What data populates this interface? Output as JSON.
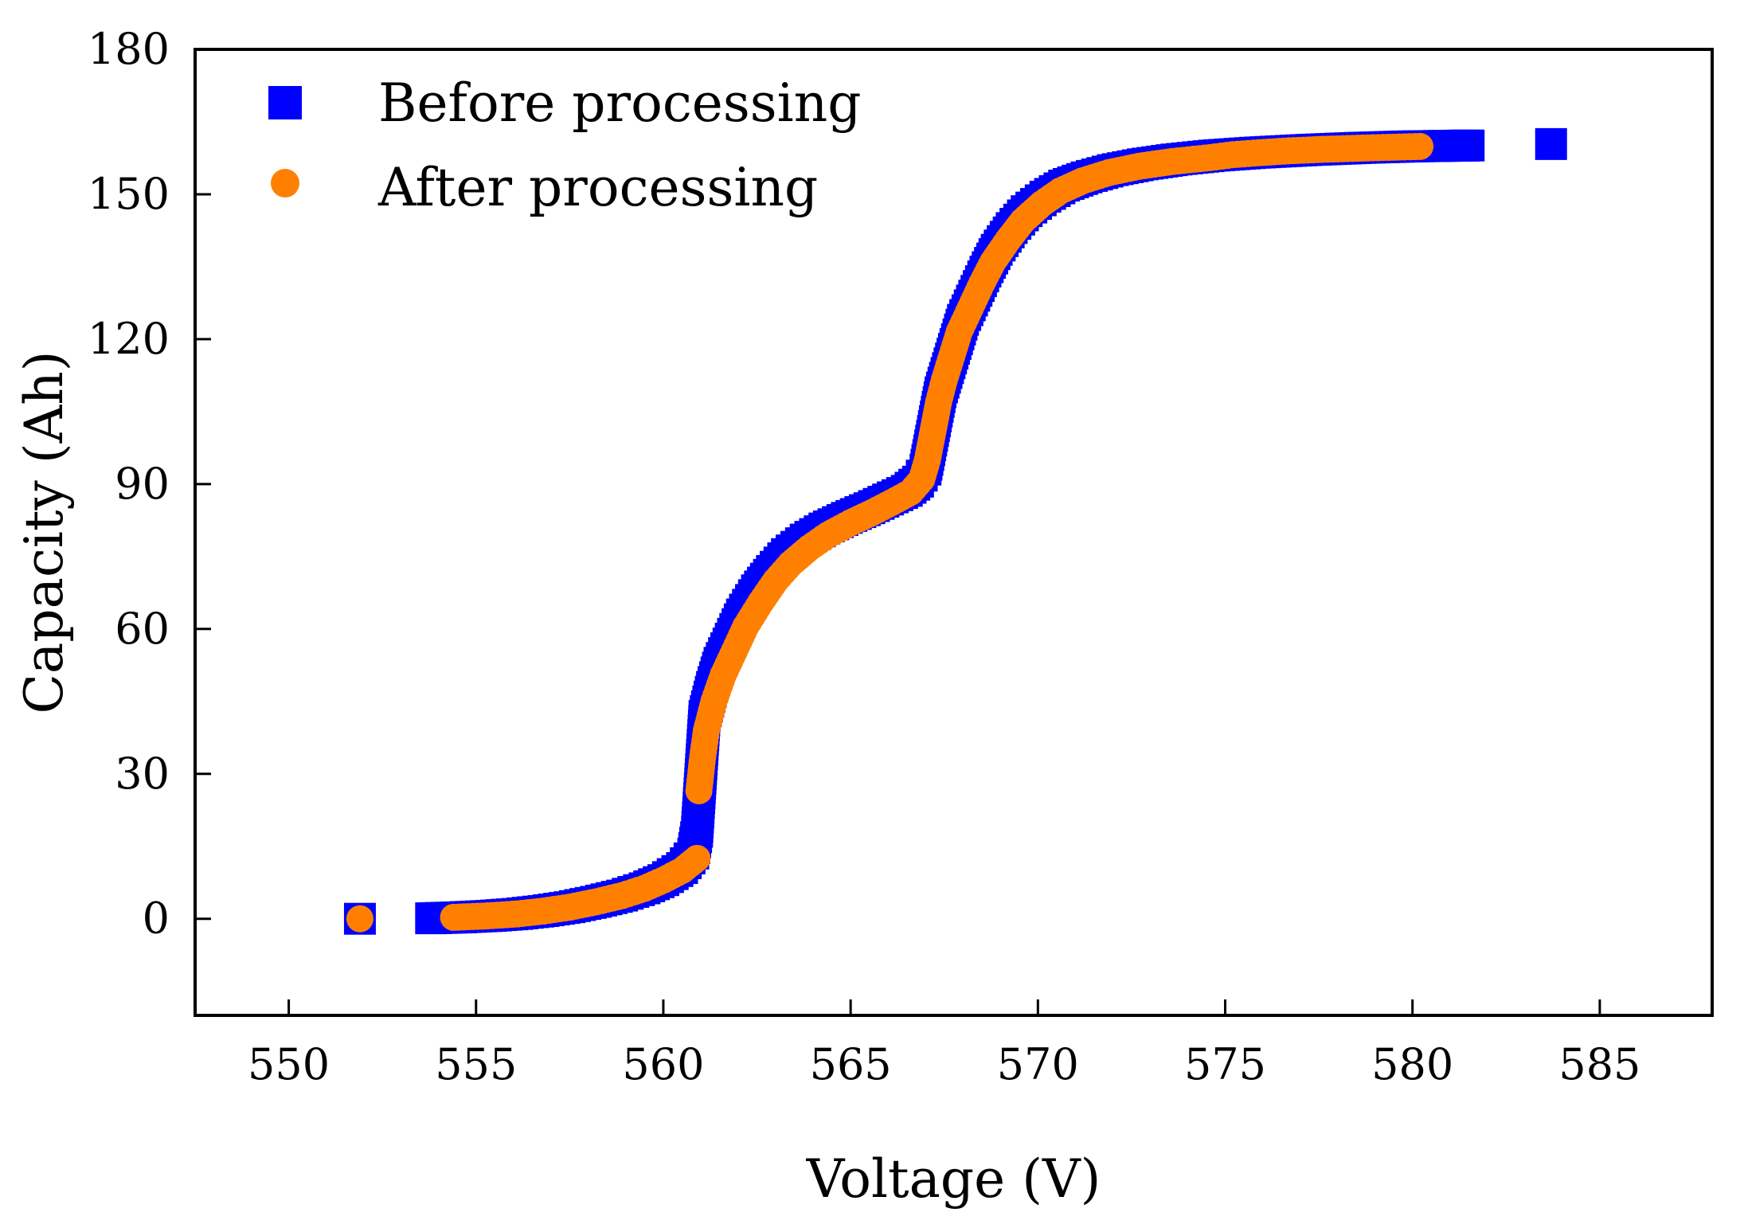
{
  "chart_data": {
    "type": "scatter",
    "xlabel": "Voltage (V)",
    "ylabel": "Capacity (Ah)",
    "xlim": [
      547.5,
      588.0
    ],
    "ylim": [
      -20,
      180
    ],
    "xticks": [
      550,
      555,
      560,
      565,
      570,
      575,
      580,
      585
    ],
    "yticks": [
      0,
      30,
      60,
      90,
      120,
      150,
      180
    ],
    "grid": false,
    "legend_position": "top-left",
    "series": [
      {
        "name": "Before processing",
        "marker": "square",
        "color": "#0000ff",
        "points": [
          [
            551.9,
            0
          ],
          [
            553.8,
            0.1
          ],
          [
            554.6,
            0.3
          ],
          [
            555.4,
            0.6
          ],
          [
            556.1,
            1.0
          ],
          [
            556.8,
            1.6
          ],
          [
            557.5,
            2.4
          ],
          [
            558.2,
            3.5
          ],
          [
            558.9,
            4.8
          ],
          [
            559.5,
            6.3
          ],
          [
            560.0,
            8.0
          ],
          [
            560.5,
            10.5
          ],
          [
            560.8,
            13.5
          ],
          [
            560.9,
            18
          ],
          [
            560.95,
            24
          ],
          [
            561.0,
            30
          ],
          [
            561.05,
            36
          ],
          [
            561.1,
            42
          ],
          [
            561.3,
            48
          ],
          [
            561.5,
            53
          ],
          [
            561.8,
            58
          ],
          [
            562.1,
            63
          ],
          [
            562.5,
            68
          ],
          [
            562.9,
            72
          ],
          [
            563.3,
            75.5
          ],
          [
            563.8,
            78.5
          ],
          [
            564.3,
            80.8
          ],
          [
            564.9,
            83
          ],
          [
            565.5,
            85
          ],
          [
            566.0,
            86.8
          ],
          [
            566.5,
            88.6
          ],
          [
            566.8,
            90.5
          ],
          [
            567.0,
            93
          ],
          [
            567.1,
            97
          ],
          [
            567.2,
            101
          ],
          [
            567.3,
            105
          ],
          [
            567.4,
            109
          ],
          [
            567.6,
            114
          ],
          [
            567.8,
            119
          ],
          [
            568.0,
            124
          ],
          [
            568.3,
            129
          ],
          [
            568.6,
            134
          ],
          [
            568.9,
            138.5
          ],
          [
            569.3,
            143
          ],
          [
            569.7,
            146.5
          ],
          [
            570.2,
            149.5
          ],
          [
            570.7,
            151.8
          ],
          [
            571.3,
            153.5
          ],
          [
            572.0,
            155
          ],
          [
            572.8,
            156.2
          ],
          [
            573.7,
            157.2
          ],
          [
            574.7,
            158
          ],
          [
            575.8,
            158.6
          ],
          [
            577.3,
            159.2
          ],
          [
            578.6,
            159.6
          ],
          [
            579.9,
            159.9
          ],
          [
            581.5,
            160.1
          ],
          [
            583.7,
            160.4
          ]
        ]
      },
      {
        "name": "After processing",
        "marker": "circle",
        "color": "#ff8000",
        "points": [
          [
            551.9,
            0
          ],
          [
            554.4,
            0.3
          ],
          [
            555.3,
            0.6
          ],
          [
            556.1,
            1.0
          ],
          [
            556.8,
            1.6
          ],
          [
            557.5,
            2.4
          ],
          [
            558.2,
            3.5
          ],
          [
            558.9,
            4.8
          ],
          [
            559.5,
            6.3
          ],
          [
            560.0,
            8.0
          ],
          [
            560.5,
            10.0
          ],
          [
            560.9,
            12.5
          ],
          [
            560.95,
            26.5
          ],
          [
            561.05,
            33.5
          ],
          [
            561.15,
            39
          ],
          [
            561.35,
            45
          ],
          [
            561.6,
            50.5
          ],
          [
            561.9,
            55.5
          ],
          [
            562.2,
            60.5
          ],
          [
            562.6,
            65.5
          ],
          [
            563.0,
            70
          ],
          [
            563.4,
            73.5
          ],
          [
            563.9,
            76.8
          ],
          [
            564.4,
            79.5
          ],
          [
            565.0,
            82
          ],
          [
            565.6,
            84.2
          ],
          [
            566.1,
            86.2
          ],
          [
            566.6,
            88.3
          ],
          [
            566.9,
            91
          ],
          [
            567.05,
            95
          ],
          [
            567.15,
            99
          ],
          [
            567.25,
            103
          ],
          [
            567.35,
            107
          ],
          [
            567.5,
            111.5
          ],
          [
            567.7,
            116.5
          ],
          [
            567.9,
            121.5
          ],
          [
            568.2,
            126.5
          ],
          [
            568.5,
            131.5
          ],
          [
            568.8,
            136
          ],
          [
            569.2,
            140.5
          ],
          [
            569.6,
            144.5
          ],
          [
            570.1,
            148
          ],
          [
            570.6,
            150.7
          ],
          [
            571.2,
            152.8
          ],
          [
            571.9,
            154.5
          ],
          [
            572.7,
            155.8
          ],
          [
            573.6,
            156.8
          ],
          [
            574.6,
            157.6
          ],
          [
            575.2,
            158.2
          ],
          [
            575.9,
            158.6
          ],
          [
            576.7,
            159
          ],
          [
            577.6,
            159.3
          ],
          [
            578.8,
            159.6
          ],
          [
            580.2,
            159.9
          ]
        ]
      }
    ]
  }
}
